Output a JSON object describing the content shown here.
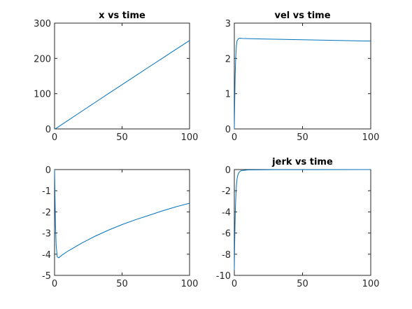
{
  "chart_data": [
    {
      "type": "line",
      "title": "x vs time",
      "xlabel": "",
      "ylabel": "",
      "xlim": [
        0,
        100
      ],
      "ylim": [
        0,
        300
      ],
      "xticks": [
        0,
        50,
        100
      ],
      "yticks": [
        0,
        100,
        200,
        300
      ],
      "grid": false,
      "color": "#0072bd",
      "series": [
        {
          "x": [
            0,
            1,
            2,
            5,
            10,
            20,
            30,
            40,
            50,
            60,
            70,
            80,
            90,
            100
          ],
          "y": [
            0,
            1.3,
            3.9,
            11.5,
            24.2,
            49.7,
            75.0,
            100.4,
            125.6,
            150.7,
            175.8,
            200.8,
            225.8,
            250.7
          ]
        }
      ]
    },
    {
      "type": "line",
      "title": "vel vs time",
      "xlabel": "",
      "ylabel": "",
      "xlim": [
        0,
        100
      ],
      "ylim": [
        0,
        3
      ],
      "xticks": [
        0,
        50,
        100
      ],
      "yticks": [
        0,
        1,
        2,
        3
      ],
      "grid": false,
      "color": "#0072bd",
      "series": [
        {
          "x": [
            0,
            0.3,
            0.6,
            1,
            1.5,
            2,
            3,
            4,
            6,
            10,
            20,
            40,
            60,
            80,
            100
          ],
          "y": [
            0,
            0.8,
            1.5,
            2.0,
            2.35,
            2.5,
            2.56,
            2.57,
            2.565,
            2.56,
            2.55,
            2.535,
            2.52,
            2.505,
            2.49
          ]
        }
      ]
    },
    {
      "type": "line",
      "title": "",
      "xlabel": "",
      "ylabel": "",
      "xlim": [
        0,
        100
      ],
      "ylim": [
        -5,
        0
      ],
      "xticks": [
        0,
        50,
        100
      ],
      "yticks": [
        -5,
        -4,
        -3,
        -2,
        -1,
        0
      ],
      "grid": false,
      "color": "#0072bd",
      "series": [
        {
          "x": [
            0,
            0.3,
            0.7,
            1.2,
            2,
            3,
            4,
            6,
            10,
            20,
            30,
            40,
            50,
            60,
            70,
            80,
            90,
            100
          ],
          "y": [
            0,
            -1.2,
            -2.6,
            -3.6,
            -4.12,
            -4.17,
            -4.12,
            -4.02,
            -3.85,
            -3.48,
            -3.15,
            -2.86,
            -2.6,
            -2.37,
            -2.16,
            -1.95,
            -1.76,
            -1.59
          ]
        }
      ]
    },
    {
      "type": "line",
      "title": "jerk vs time",
      "xlabel": "",
      "ylabel": "",
      "xlim": [
        0,
        100
      ],
      "ylim": [
        -10,
        0
      ],
      "xticks": [
        0,
        50,
        100
      ],
      "yticks": [
        -10,
        -8,
        -6,
        -4,
        -2,
        0
      ],
      "grid": false,
      "color": "#0072bd",
      "series": [
        {
          "x": [
            0,
            0.2,
            0.5,
            0.8,
            1.2,
            1.6,
            2,
            2.6,
            3.5,
            5,
            10,
            30,
            60,
            100
          ],
          "y": [
            -9.5,
            -7.5,
            -5.2,
            -3.6,
            -2.3,
            -1.4,
            -0.9,
            -0.5,
            -0.25,
            -0.1,
            -0.03,
            -0.01,
            -0.005,
            -0.002
          ]
        }
      ]
    }
  ]
}
